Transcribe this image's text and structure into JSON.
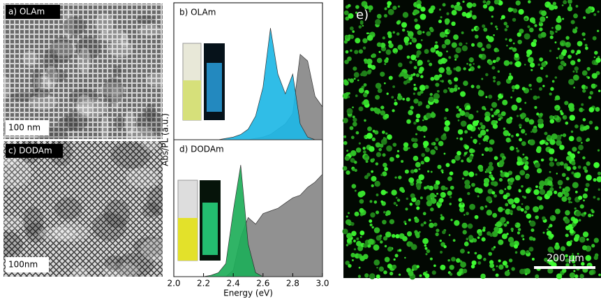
{
  "images": [
    {
      "label": "a) OLAm",
      "scale": "100 nm"
    },
    {
      "label": "c) DODAm",
      "scale": "100nm"
    },
    {
      "label": "e)",
      "scale": "200 µm"
    }
  ],
  "chart_data": [
    {
      "type": "area",
      "title": "b) OLAm",
      "ylabel": "Abs/PL (a.u.)",
      "x": [
        2.0,
        2.05,
        2.1,
        2.15,
        2.2,
        2.25,
        2.3,
        2.35,
        2.4,
        2.45,
        2.5,
        2.55,
        2.6,
        2.65,
        2.7,
        2.75,
        2.8,
        2.85,
        2.9,
        2.95,
        3.0
      ],
      "xlim": [
        2.0,
        3.0
      ],
      "ylim": [
        0,
        1
      ],
      "series": [
        {
          "color": "#888888",
          "values": [
            0,
            0,
            0,
            0,
            0,
            0,
            0,
            0,
            0,
            0,
            0,
            0.01,
            0.02,
            0.04,
            0.08,
            0.12,
            0.2,
            0.65,
            0.6,
            0.33,
            0.25
          ]
        },
        {
          "color": "#1fb8e6",
          "values": [
            0,
            0,
            0,
            0,
            0,
            0,
            0,
            0.01,
            0.02,
            0.04,
            0.08,
            0.18,
            0.4,
            0.85,
            0.5,
            0.35,
            0.5,
            0.12,
            0.02,
            0,
            0
          ]
        }
      ]
    },
    {
      "type": "area",
      "title": "d) DODAm",
      "xlabel": "Energy (eV)",
      "x": [
        2.0,
        2.05,
        2.1,
        2.15,
        2.2,
        2.25,
        2.3,
        2.35,
        2.4,
        2.45,
        2.5,
        2.55,
        2.6,
        2.65,
        2.7,
        2.75,
        2.8,
        2.85,
        2.9,
        2.95,
        3.0
      ],
      "xlim": [
        2.0,
        3.0
      ],
      "ylim": [
        0,
        1
      ],
      "xticks": [
        {
          "value": 2.0,
          "label": "2.0"
        },
        {
          "value": 2.2,
          "label": "2.2"
        },
        {
          "value": 2.4,
          "label": "2.4"
        },
        {
          "value": 2.6,
          "label": "2.6"
        },
        {
          "value": 2.8,
          "label": "2.8"
        },
        {
          "value": 3.0,
          "label": "3.0"
        }
      ],
      "series": [
        {
          "color": "#888888",
          "values": [
            0,
            0,
            0,
            0,
            0,
            0,
            0,
            0,
            0.05,
            0.3,
            0.45,
            0.4,
            0.48,
            0.5,
            0.52,
            0.56,
            0.6,
            0.62,
            0.68,
            0.72,
            0.78
          ]
        },
        {
          "color": "#1fae5a",
          "values": [
            0,
            0,
            0,
            0,
            0,
            0.01,
            0.03,
            0.1,
            0.5,
            0.85,
            0.25,
            0.03,
            0,
            0,
            0,
            0,
            0,
            0,
            0,
            0,
            0
          ]
        }
      ]
    }
  ]
}
